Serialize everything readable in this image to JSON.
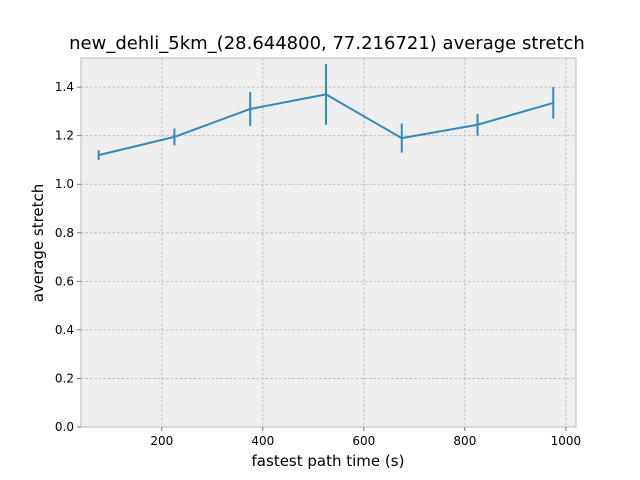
{
  "chart_data": {
    "type": "line",
    "title": "new_dehli_5km_(28.644800, 77.216721) average stretch",
    "xlabel": "fastest path time (s)",
    "ylabel": "average stretch",
    "xlim": [
      40,
      1020
    ],
    "ylim": [
      0.0,
      1.52
    ],
    "xticks": [
      200,
      400,
      600,
      800,
      1000
    ],
    "yticks": [
      0.0,
      0.2,
      0.4,
      0.6,
      0.8,
      1.0,
      1.2,
      1.4
    ],
    "xtick_labels": [
      "200",
      "400",
      "600",
      "800",
      "1000"
    ],
    "ytick_labels": [
      "0.0",
      "0.2",
      "0.4",
      "0.6",
      "0.8",
      "1.0",
      "1.2",
      "1.4"
    ],
    "grid": true,
    "series": [
      {
        "x": [
          75,
          225,
          375,
          525,
          675,
          825,
          975
        ],
        "y": [
          1.12,
          1.195,
          1.31,
          1.37,
          1.19,
          1.245,
          1.335
        ],
        "yerr": [
          0.02,
          0.035,
          0.07,
          0.125,
          0.06,
          0.045,
          0.065
        ]
      }
    ],
    "colors": {
      "line": "#348abd",
      "plot_bg": "#eeeeee",
      "grid": "#b2b2b2",
      "frame": "#bcbcbc"
    }
  }
}
